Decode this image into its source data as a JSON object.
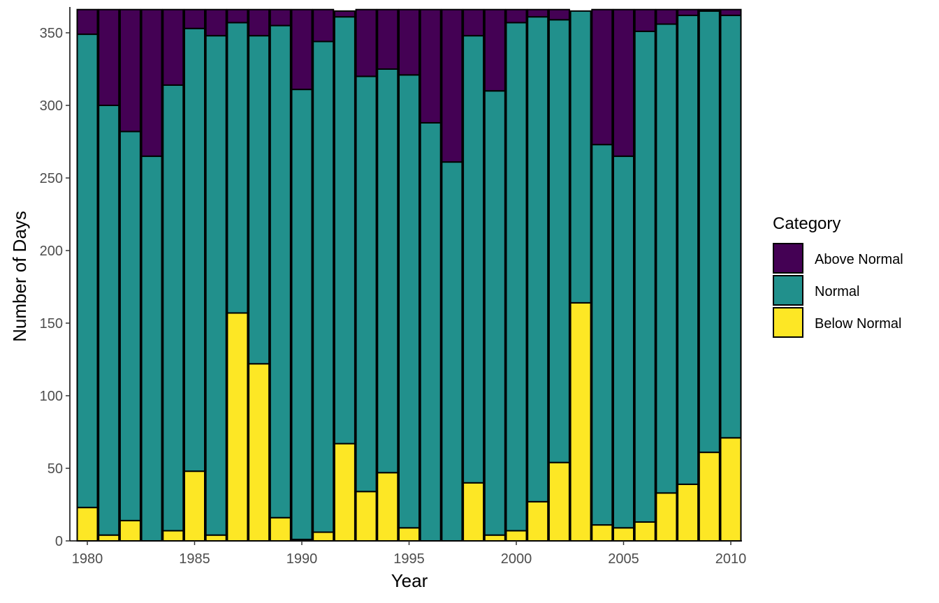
{
  "chart_data": {
    "type": "bar",
    "stacked": true,
    "title": "",
    "xlabel": "Year",
    "ylabel": "Number of Days",
    "x": [
      1980,
      1981,
      1982,
      1983,
      1984,
      1985,
      1986,
      1987,
      1988,
      1989,
      1990,
      1991,
      1992,
      1993,
      1994,
      1995,
      1996,
      1997,
      1998,
      1999,
      2000,
      2001,
      2002,
      2003,
      2004,
      2005,
      2006,
      2007,
      2008,
      2009,
      2010
    ],
    "x_ticks": [
      1980,
      1985,
      1990,
      1995,
      2000,
      2005,
      2010
    ],
    "y_ticks": [
      0,
      50,
      100,
      150,
      200,
      250,
      300,
      350
    ],
    "ylim": [
      0,
      366
    ],
    "legend": {
      "title": "Category",
      "position": "right"
    },
    "series": [
      {
        "name": "Above Normal",
        "color": "#440154",
        "values": [
          17,
          66,
          84,
          101,
          52,
          13,
          18,
          9,
          18,
          11,
          55,
          22,
          4,
          46,
          41,
          45,
          78,
          105,
          18,
          56,
          9,
          5,
          7,
          0,
          93,
          101,
          15,
          10,
          4,
          1,
          4
        ]
      },
      {
        "name": "Normal",
        "color": "#21908C",
        "values": [
          326,
          296,
          268,
          265,
          307,
          305,
          344,
          200,
          226,
          339,
          310,
          338,
          294,
          286,
          278,
          312,
          288,
          261,
          308,
          306,
          350,
          334,
          305,
          201,
          262,
          256,
          338,
          323,
          323,
          304,
          291
        ]
      },
      {
        "name": "Below Normal",
        "color": "#FDE725",
        "values": [
          23,
          4,
          14,
          0,
          7,
          48,
          4,
          157,
          122,
          16,
          1,
          6,
          67,
          34,
          47,
          9,
          0,
          0,
          40,
          4,
          7,
          27,
          54,
          164,
          11,
          9,
          13,
          33,
          39,
          61,
          71
        ]
      }
    ]
  }
}
